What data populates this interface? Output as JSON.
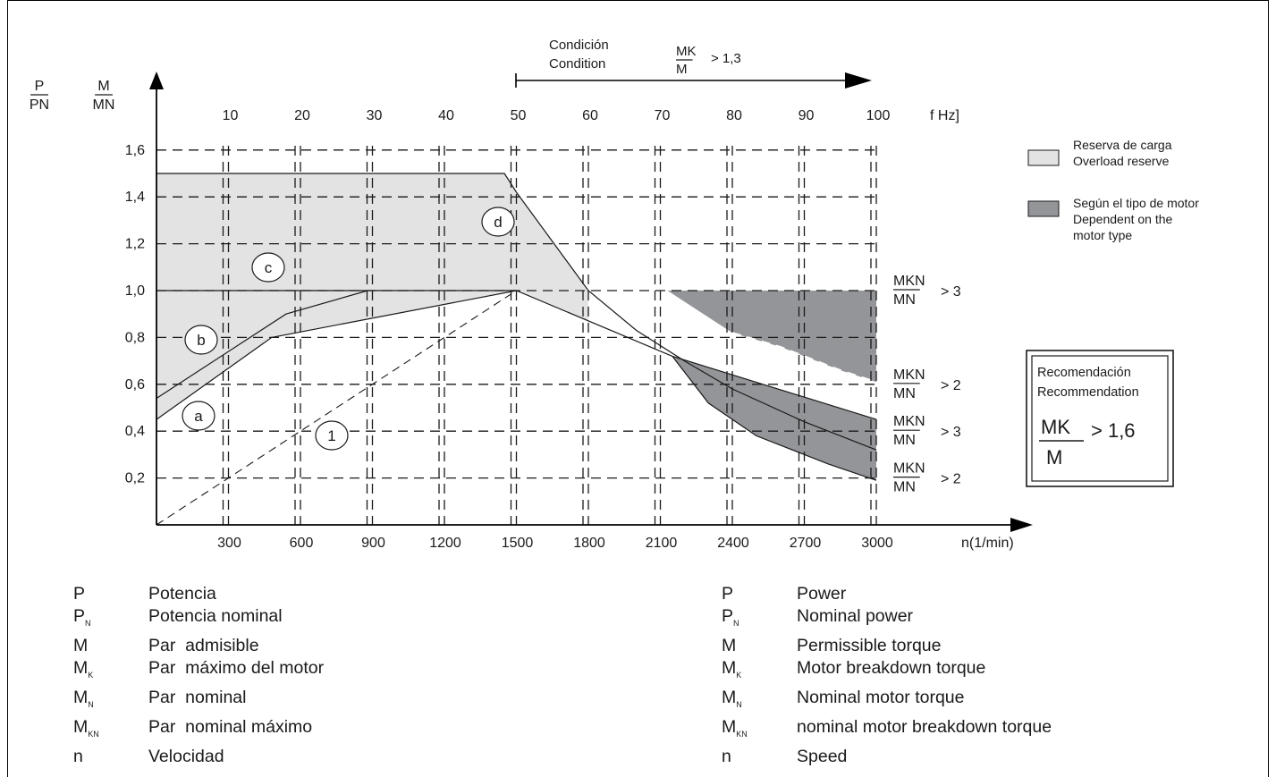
{
  "chart_data": {
    "type": "line",
    "y_axis_labels": {
      "power": {
        "num": "P",
        "den": "PN"
      },
      "torque": {
        "num": "M",
        "den": "MN"
      }
    },
    "x_axis": {
      "label": "n(1/min)",
      "ticks": [
        300,
        600,
        900,
        1200,
        1500,
        1800,
        2100,
        2400,
        2700,
        3000
      ],
      "tick_labels": [
        "300",
        "600",
        "900",
        "1200",
        "1500",
        "1800",
        "2100",
        "2400",
        "2700",
        "3000"
      ],
      "range": [
        0,
        3000
      ]
    },
    "freq_axis": {
      "label": "f Hz]",
      "ticks": [
        10,
        20,
        30,
        40,
        50,
        60,
        70,
        80,
        90,
        100
      ],
      "tick_labels": [
        "10",
        "20",
        "30",
        "40",
        "50",
        "60",
        "70",
        "80",
        "90",
        "100"
      ]
    },
    "y_axis": {
      "ticks": [
        0.2,
        0.4,
        0.6,
        0.8,
        1.0,
        1.2,
        1.4,
        1.6
      ],
      "tick_labels": [
        "0,2",
        "0,4",
        "0,6",
        "0,8",
        "1,0",
        "1,2",
        "1,4",
        "1,6"
      ],
      "range": [
        0,
        1.6
      ],
      "grid": "dashed"
    },
    "series": [
      {
        "name": "a",
        "points": [
          [
            0,
            0.45
          ],
          [
            480,
            0.8
          ],
          [
            1500,
            1.0
          ],
          [
            2150,
            0.72
          ],
          [
            3000,
            0.45
          ]
        ]
      },
      {
        "name": "b",
        "points": [
          [
            0,
            0.54
          ],
          [
            540,
            0.9
          ],
          [
            880,
            1.0
          ]
        ]
      },
      {
        "name": "c",
        "points": [
          [
            0,
            1.0
          ],
          [
            1500,
            1.0
          ]
        ]
      },
      {
        "name": "d",
        "points": [
          [
            0,
            1.5
          ],
          [
            1450,
            1.5
          ],
          [
            1500,
            1.42
          ],
          [
            1600,
            1.28
          ],
          [
            1800,
            1.0
          ],
          [
            2000,
            0.83
          ],
          [
            2200,
            0.7
          ],
          [
            2400,
            0.58
          ],
          [
            2700,
            0.44
          ],
          [
            3000,
            0.32
          ]
        ]
      },
      {
        "name": "1",
        "points": [
          [
            0,
            0.0
          ],
          [
            1500,
            1.0
          ]
        ]
      }
    ],
    "bands": [
      {
        "type": "overload_reserve",
        "color": "#e3e3e3"
      },
      {
        "type": "motor_dependent",
        "color": "#939598"
      }
    ],
    "circle_labels": [
      "a",
      "b",
      "c",
      "d",
      "1"
    ],
    "right_annotations": [
      {
        "num": "MKN",
        "den": "MN",
        "suffix": "> 3",
        "y": 1.0
      },
      {
        "num": "MKN",
        "den": "MN",
        "suffix": "> 2",
        "y": 0.6
      },
      {
        "num": "MKN",
        "den": "MN",
        "suffix": "> 3",
        "y": 0.4
      },
      {
        "num": "MKN",
        "den": "MN",
        "suffix": "> 2",
        "y": 0.2
      }
    ],
    "condition": {
      "line1": "Condición",
      "line2": "Condition",
      "num": "MK",
      "den": "M",
      "suffix": "> 1,3"
    },
    "legend": [
      {
        "line1": "Reserva de carga",
        "line2": "Overload reserve",
        "line3": "",
        "color": "#e3e3e3"
      },
      {
        "line1": "Según el tipo de motor",
        "line2": "Dependent on the",
        "line3": "motor type",
        "color": "#939598"
      }
    ],
    "recommendation": {
      "line1": "Recomendación",
      "line2": "Recommendation",
      "num": "MK",
      "den": "M",
      "suffix": "> 1,6"
    }
  },
  "abbreviations_es": [
    {
      "sym": "P",
      "sub": "",
      "desc": "Potencia"
    },
    {
      "sym": "P",
      "sub": "N",
      "desc": "Potencia nominal"
    },
    {
      "sym": "M",
      "sub": "",
      "desc": "Par  admisible"
    },
    {
      "sym": "M",
      "sub": "K",
      "desc": "Par  máximo del motor"
    },
    {
      "sym": "M",
      "sub": "N",
      "desc": "Par  nominal"
    },
    {
      "sym": "M",
      "sub": "KN",
      "desc": "Par  nominal máximo"
    },
    {
      "sym": "n",
      "sub": "",
      "desc": "Velocidad"
    }
  ],
  "abbreviations_en": [
    {
      "sym": "P",
      "sub": "",
      "desc": "Power"
    },
    {
      "sym": "P",
      "sub": "N",
      "desc": "Nominal power"
    },
    {
      "sym": "M",
      "sub": "",
      "desc": "Permissible torque"
    },
    {
      "sym": "M",
      "sub": "K",
      "desc": "Motor breakdown torque"
    },
    {
      "sym": "M",
      "sub": "N",
      "desc": "Nominal motor torque"
    },
    {
      "sym": "M",
      "sub": "KN",
      "desc": "nominal motor breakdown torque"
    },
    {
      "sym": "n",
      "sub": "",
      "desc": "Speed"
    }
  ]
}
